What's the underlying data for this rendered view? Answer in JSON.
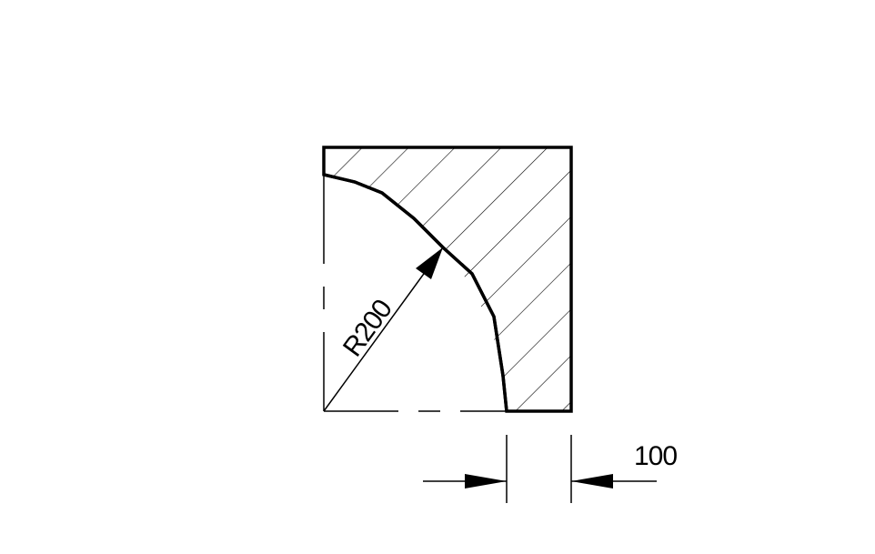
{
  "drawing": {
    "radius_label": "R200",
    "width_label": "100",
    "line_color": "#000000",
    "background_color": "#ffffff",
    "hatch_pattern": "diagonal-45"
  }
}
